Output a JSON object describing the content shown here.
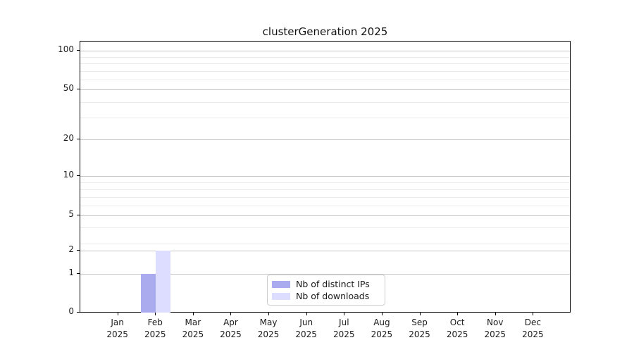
{
  "chart_data": {
    "type": "bar",
    "title": "clusterGeneration 2025",
    "categories": [
      "Jan",
      "Feb",
      "Mar",
      "Apr",
      "May",
      "Jun",
      "Jul",
      "Aug",
      "Sep",
      "Oct",
      "Nov",
      "Dec"
    ],
    "year": "2025",
    "series": [
      {
        "name": "Nb of distinct IPs",
        "color": "#aaaaee",
        "values": [
          0,
          1,
          0,
          0,
          0,
          0,
          0,
          0,
          0,
          0,
          0,
          0
        ]
      },
      {
        "name": "Nb of downloads",
        "color": "#ddddff",
        "values": [
          0,
          2,
          0,
          0,
          0,
          0,
          0,
          0,
          0,
          0,
          0,
          0
        ]
      }
    ],
    "yticks_major": [
      0,
      1,
      2,
      5,
      10,
      20,
      50,
      100
    ],
    "yticks_minor": [
      3,
      4,
      6,
      7,
      8,
      9,
      30,
      40,
      60,
      70,
      80,
      90
    ],
    "ylim": [
      0,
      100
    ],
    "yscale": "symlog",
    "grid": true,
    "legend_position": "lower center",
    "xlabel": "",
    "ylabel": ""
  },
  "colors": {
    "grid_major": "#c6c6c6",
    "grid_minor": "#ebebeb",
    "spine": "#000000",
    "text": "#1a1a1a"
  }
}
